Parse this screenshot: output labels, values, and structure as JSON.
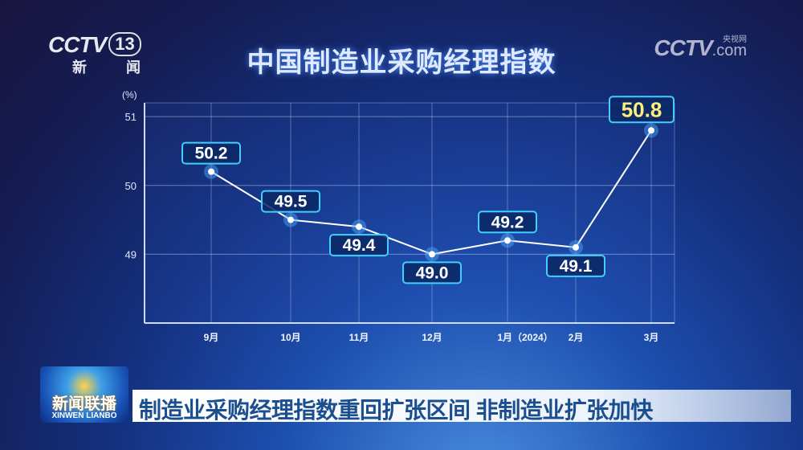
{
  "channel": {
    "logo": "CCTV",
    "number": "13",
    "name": "新 闻"
  },
  "watermark": {
    "logo": "CCTV",
    "domain": ".com",
    "cn": "央视网"
  },
  "program": {
    "name_cn": "新闻联播",
    "name_en": "XINWEN LIANBO"
  },
  "caption": "制造业采购经理指数重回扩张区间 非制造业扩张加快",
  "colors": {
    "highlight": "#ffef7a",
    "label_border": "#3fd0ff",
    "line": "#ffffff"
  },
  "chart_data": {
    "type": "line",
    "title": "中国制造业采购经理指数",
    "ylabel": "(%)",
    "categories": [
      "9月",
      "10月",
      "11月",
      "12月",
      "1月（2024）",
      "2月",
      "3月"
    ],
    "values": [
      50.2,
      49.5,
      49.4,
      49.0,
      49.2,
      49.1,
      50.8
    ],
    "value_labels": [
      "50.2",
      "49.5",
      "49.4",
      "49.0",
      "49.2",
      "49.1",
      "50.8"
    ],
    "yticks": [
      49,
      50,
      51
    ],
    "ytick_labels": [
      "49",
      "50",
      "51"
    ],
    "ylim": [
      48,
      51.2
    ],
    "grid": true,
    "highlight_index": 6
  }
}
